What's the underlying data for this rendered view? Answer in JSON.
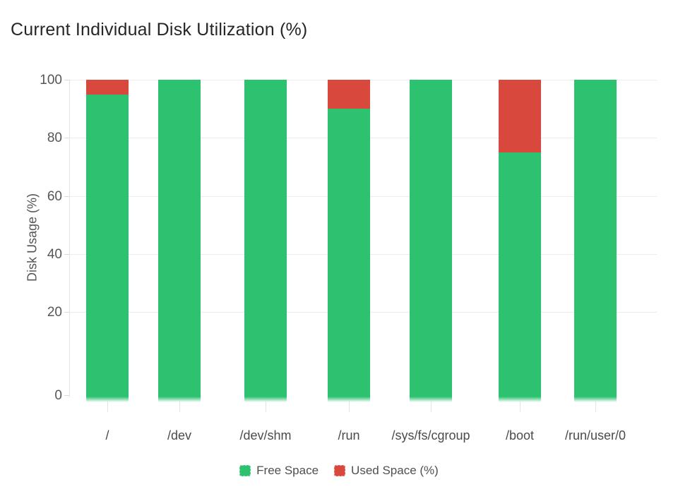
{
  "header": {
    "title": "Current Individual Disk Utilization (%)"
  },
  "chart_data": {
    "type": "bar",
    "stacked": true,
    "title": "Current Individual Disk Utilization (%)",
    "categories": [
      "/",
      "/dev",
      "/dev/shm",
      "/run",
      "/sys/fs/cgroup",
      "/boot",
      "/run/user/0"
    ],
    "series": [
      {
        "name": "Free Space",
        "color": "#2DC26F",
        "values": [
          95,
          100,
          100,
          90,
          100,
          75,
          100
        ]
      },
      {
        "name": "Used Space (%)",
        "color": "#D9483C",
        "values": [
          5,
          0,
          0,
          10,
          0,
          25,
          0
        ]
      }
    ],
    "xlabel": "",
    "ylabel": "Disk Usage (%)",
    "yticks": [
      0,
      20,
      40,
      60,
      80,
      100
    ],
    "ylim": [
      0,
      100
    ],
    "grid": true,
    "legend_position": "bottom"
  }
}
